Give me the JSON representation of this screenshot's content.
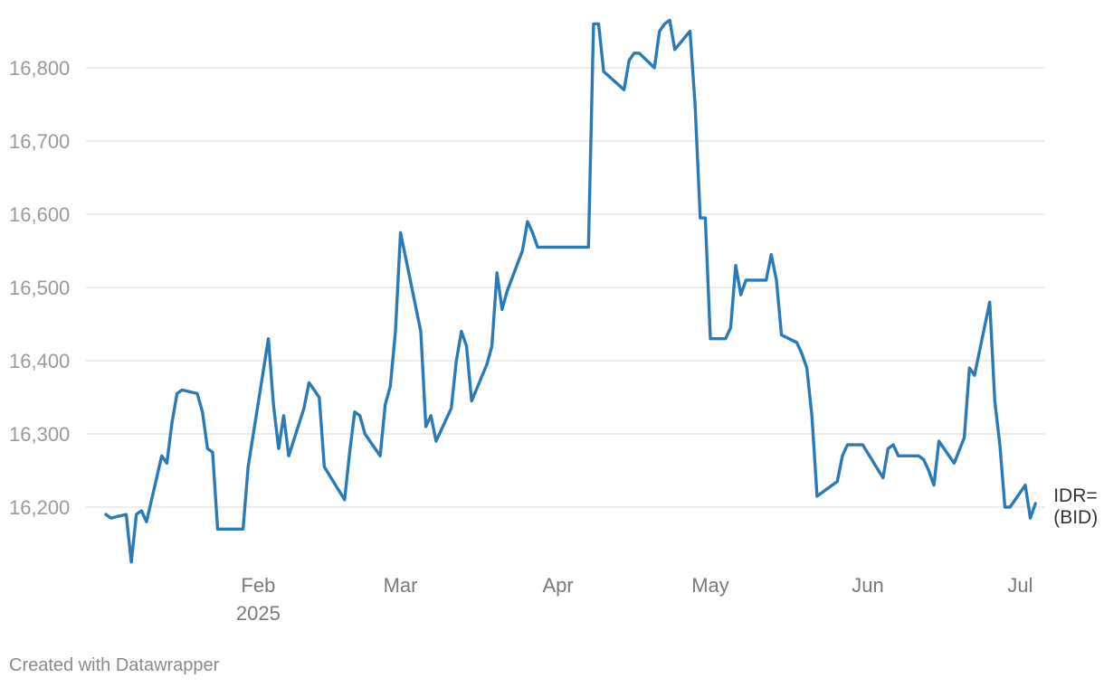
{
  "chart_data": {
    "type": "line",
    "title": "",
    "xlabel": "",
    "ylabel": "",
    "x_range": [
      "2025-01-02",
      "2025-07-02"
    ],
    "ylim": [
      16120,
      16870
    ],
    "y_ticks": [
      16200,
      16300,
      16400,
      16500,
      16600,
      16700,
      16800
    ],
    "y_tick_labels": [
      "16,200",
      "16,300",
      "16,400",
      "16,500",
      "16,600",
      "16,700",
      "16,800"
    ],
    "x_ticks": [
      {
        "date": "2025-02-01",
        "label": "Feb",
        "sublabel": "2025"
      },
      {
        "date": "2025-03-01",
        "label": "Mar",
        "sublabel": ""
      },
      {
        "date": "2025-04-01",
        "label": "Apr",
        "sublabel": ""
      },
      {
        "date": "2025-05-01",
        "label": "May",
        "sublabel": ""
      },
      {
        "date": "2025-06-01",
        "label": "Jun",
        "sublabel": ""
      },
      {
        "date": "2025-07-01",
        "label": "Jul",
        "sublabel": ""
      }
    ],
    "grid": true,
    "legend": "none",
    "series": [
      {
        "label_lines": [
          "IDR=",
          "(BID)"
        ],
        "color": "#2a7ab8",
        "points": [
          [
            "2025-01-02",
            16190
          ],
          [
            "2025-01-03",
            16185
          ],
          [
            "2025-01-06",
            16190
          ],
          [
            "2025-01-07",
            16125
          ],
          [
            "2025-01-08",
            16190
          ],
          [
            "2025-01-09",
            16195
          ],
          [
            "2025-01-10",
            16180
          ],
          [
            "2025-01-13",
            16270
          ],
          [
            "2025-01-14",
            16260
          ],
          [
            "2025-01-15",
            16315
          ],
          [
            "2025-01-16",
            16355
          ],
          [
            "2025-01-17",
            16360
          ],
          [
            "2025-01-20",
            16355
          ],
          [
            "2025-01-21",
            16330
          ],
          [
            "2025-01-22",
            16280
          ],
          [
            "2025-01-23",
            16275
          ],
          [
            "2025-01-24",
            16170
          ],
          [
            "2025-01-29",
            16170
          ],
          [
            "2025-01-30",
            16255
          ],
          [
            "2025-02-03",
            16430
          ],
          [
            "2025-02-04",
            16340
          ],
          [
            "2025-02-05",
            16280
          ],
          [
            "2025-02-06",
            16325
          ],
          [
            "2025-02-07",
            16270
          ],
          [
            "2025-02-10",
            16335
          ],
          [
            "2025-02-11",
            16370
          ],
          [
            "2025-02-13",
            16350
          ],
          [
            "2025-02-14",
            16255
          ],
          [
            "2025-02-18",
            16210
          ],
          [
            "2025-02-19",
            16275
          ],
          [
            "2025-02-20",
            16330
          ],
          [
            "2025-02-21",
            16325
          ],
          [
            "2025-02-22",
            16300
          ],
          [
            "2025-02-25",
            16270
          ],
          [
            "2025-02-26",
            16340
          ],
          [
            "2025-02-27",
            16365
          ],
          [
            "2025-02-28",
            16440
          ],
          [
            "2025-03-01",
            16575
          ],
          [
            "2025-03-05",
            16440
          ],
          [
            "2025-03-06",
            16310
          ],
          [
            "2025-03-07",
            16325
          ],
          [
            "2025-03-08",
            16290
          ],
          [
            "2025-03-11",
            16335
          ],
          [
            "2025-03-12",
            16400
          ],
          [
            "2025-03-13",
            16440
          ],
          [
            "2025-03-14",
            16420
          ],
          [
            "2025-03-15",
            16345
          ],
          [
            "2025-03-18",
            16395
          ],
          [
            "2025-03-19",
            16420
          ],
          [
            "2025-03-20",
            16520
          ],
          [
            "2025-03-21",
            16470
          ],
          [
            "2025-03-22",
            16495
          ],
          [
            "2025-03-25",
            16550
          ],
          [
            "2025-03-26",
            16590
          ],
          [
            "2025-03-27",
            16575
          ],
          [
            "2025-03-28",
            16555
          ],
          [
            "2025-04-07",
            16555
          ],
          [
            "2025-04-08",
            16860
          ],
          [
            "2025-04-09",
            16860
          ],
          [
            "2025-04-10",
            16795
          ],
          [
            "2025-04-14",
            16770
          ],
          [
            "2025-04-15",
            16810
          ],
          [
            "2025-04-16",
            16820
          ],
          [
            "2025-04-17",
            16820
          ],
          [
            "2025-04-20",
            16800
          ],
          [
            "2025-04-21",
            16850
          ],
          [
            "2025-04-22",
            16860
          ],
          [
            "2025-04-23",
            16865
          ],
          [
            "2025-04-24",
            16825
          ],
          [
            "2025-04-27",
            16850
          ],
          [
            "2025-04-28",
            16750
          ],
          [
            "2025-04-29",
            16595
          ],
          [
            "2025-04-30",
            16595
          ],
          [
            "2025-05-01",
            16430
          ],
          [
            "2025-05-04",
            16430
          ],
          [
            "2025-05-05",
            16445
          ],
          [
            "2025-05-06",
            16530
          ],
          [
            "2025-05-07",
            16490
          ],
          [
            "2025-05-08",
            16510
          ],
          [
            "2025-05-12",
            16510
          ],
          [
            "2025-05-13",
            16545
          ],
          [
            "2025-05-14",
            16510
          ],
          [
            "2025-05-15",
            16435
          ],
          [
            "2025-05-18",
            16425
          ],
          [
            "2025-05-19",
            16410
          ],
          [
            "2025-05-20",
            16390
          ],
          [
            "2025-05-21",
            16325
          ],
          [
            "2025-05-22",
            16215
          ],
          [
            "2025-05-26",
            16235
          ],
          [
            "2025-05-27",
            16270
          ],
          [
            "2025-05-28",
            16285
          ],
          [
            "2025-05-31",
            16285
          ],
          [
            "2025-06-04",
            16240
          ],
          [
            "2025-06-05",
            16280
          ],
          [
            "2025-06-06",
            16285
          ],
          [
            "2025-06-07",
            16270
          ],
          [
            "2025-06-11",
            16270
          ],
          [
            "2025-06-12",
            16265
          ],
          [
            "2025-06-13",
            16250
          ],
          [
            "2025-06-14",
            16230
          ],
          [
            "2025-06-15",
            16290
          ],
          [
            "2025-06-18",
            16260
          ],
          [
            "2025-06-20",
            16295
          ],
          [
            "2025-06-21",
            16390
          ],
          [
            "2025-06-22",
            16380
          ],
          [
            "2025-06-25",
            16480
          ],
          [
            "2025-06-26",
            16345
          ],
          [
            "2025-06-27",
            16285
          ],
          [
            "2025-06-28",
            16200
          ],
          [
            "2025-06-29",
            16200
          ],
          [
            "2025-07-02",
            16230
          ],
          [
            "2025-07-03",
            16185
          ],
          [
            "2025-07-04",
            16205
          ]
        ]
      }
    ]
  },
  "footer": {
    "credit": "Created with Datawrapper"
  }
}
